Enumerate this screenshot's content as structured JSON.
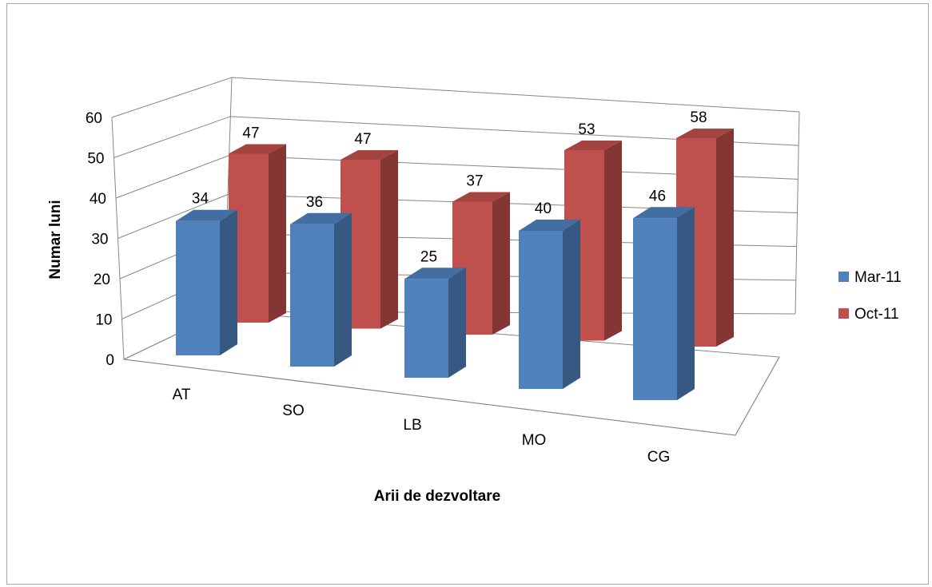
{
  "chart_data": {
    "type": "bar",
    "subtype": "3d-clustered-column",
    "categories": [
      "AT",
      "SO",
      "LB",
      "MO",
      "CG"
    ],
    "series": [
      {
        "name": "Mar-11",
        "values": [
          34,
          36,
          25,
          40,
          46
        ],
        "color": "#4f81bd"
      },
      {
        "name": "Oct-11",
        "values": [
          47,
          47,
          37,
          53,
          58
        ],
        "color": "#c0504d"
      }
    ],
    "xlabel": "Arii de dezvoltare",
    "ylabel": "Numar luni",
    "ylim": [
      0,
      60
    ],
    "yticks": [
      0,
      10,
      20,
      30,
      40,
      50,
      60
    ],
    "grid": true,
    "legend": "right"
  }
}
